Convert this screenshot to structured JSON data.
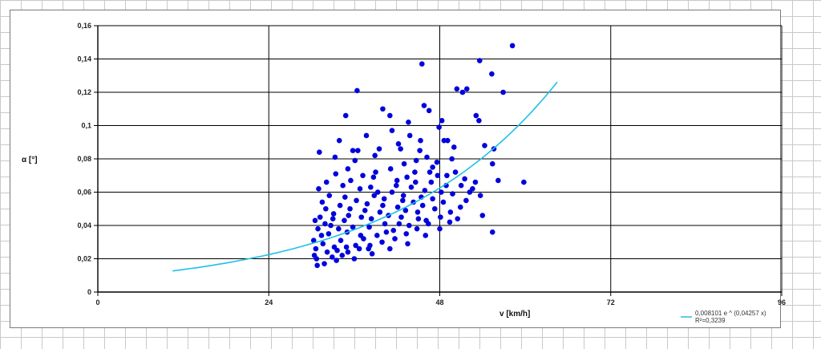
{
  "chart_data": {
    "type": "scatter",
    "title": "",
    "xlabel": "v [km/h]",
    "ylabel": "α [°]",
    "xlim": [
      0,
      96
    ],
    "ylim": [
      0,
      0.16
    ],
    "x_ticks": [
      "0",
      "24",
      "48",
      "72",
      "96"
    ],
    "y_ticks": [
      "0",
      "0,02",
      "0,04",
      "0,06",
      "0,08",
      "0,1",
      "0,12",
      "0,14",
      "0,16"
    ],
    "grid": true,
    "legend_position": "bottom-right",
    "colors": {
      "points": "#0000dd",
      "trend": "#1ec0e8",
      "grid": "#000000"
    },
    "series": [
      {
        "name": "",
        "points": [
          [
            58.2,
            0.148
          ],
          [
            53.6,
            0.139
          ],
          [
            45.5,
            0.137
          ],
          [
            55.3,
            0.131
          ],
          [
            56.9,
            0.12
          ],
          [
            50.4,
            0.122
          ],
          [
            51.2,
            0.12
          ],
          [
            51.8,
            0.122
          ],
          [
            36.4,
            0.121
          ],
          [
            45.8,
            0.112
          ],
          [
            40.0,
            0.11
          ],
          [
            46.5,
            0.109
          ],
          [
            41.0,
            0.106
          ],
          [
            34.8,
            0.106
          ],
          [
            43.6,
            0.102
          ],
          [
            48.3,
            0.103
          ],
          [
            53.1,
            0.106
          ],
          [
            53.5,
            0.103
          ],
          [
            41.3,
            0.097
          ],
          [
            47.9,
            0.099
          ],
          [
            43.8,
            0.094
          ],
          [
            37.7,
            0.094
          ],
          [
            33.9,
            0.091
          ],
          [
            49.1,
            0.091
          ],
          [
            48.6,
            0.091
          ],
          [
            54.3,
            0.088
          ],
          [
            55.6,
            0.086
          ],
          [
            39.5,
            0.086
          ],
          [
            35.8,
            0.085
          ],
          [
            31.1,
            0.084
          ],
          [
            36.5,
            0.085
          ],
          [
            42.5,
            0.086
          ],
          [
            45.2,
            0.085
          ],
          [
            50.0,
            0.087
          ],
          [
            55.4,
            0.077
          ],
          [
            59.8,
            0.066
          ],
          [
            56.2,
            0.067
          ],
          [
            53.0,
            0.066
          ],
          [
            51.0,
            0.064
          ],
          [
            49.8,
            0.059
          ],
          [
            53.7,
            0.058
          ],
          [
            51.7,
            0.055
          ],
          [
            54.0,
            0.046
          ],
          [
            55.4,
            0.036
          ],
          [
            38.7,
            0.069
          ],
          [
            47.0,
            0.075
          ],
          [
            44.5,
            0.072
          ],
          [
            42.0,
            0.067
          ],
          [
            35.5,
            0.067
          ],
          [
            32.5,
            0.058
          ],
          [
            31.0,
            0.062
          ],
          [
            30.5,
            0.043
          ],
          [
            30.3,
            0.031
          ],
          [
            30.4,
            0.022
          ],
          [
            30.8,
            0.016
          ],
          [
            31.8,
            0.017
          ],
          [
            33.5,
            0.019
          ],
          [
            36.0,
            0.02
          ],
          [
            38.5,
            0.023
          ],
          [
            41.0,
            0.026
          ],
          [
            43.5,
            0.029
          ],
          [
            46.0,
            0.034
          ],
          [
            48.0,
            0.038
          ],
          [
            30.9,
            0.038
          ],
          [
            31.6,
            0.029
          ],
          [
            32.4,
            0.035
          ],
          [
            33.2,
            0.027
          ],
          [
            34.1,
            0.031
          ],
          [
            35.0,
            0.036
          ],
          [
            36.2,
            0.028
          ],
          [
            37.3,
            0.032
          ],
          [
            38.1,
            0.039
          ],
          [
            39.2,
            0.034
          ],
          [
            40.3,
            0.041
          ],
          [
            41.5,
            0.037
          ],
          [
            42.6,
            0.045
          ],
          [
            43.7,
            0.04
          ],
          [
            44.9,
            0.048
          ],
          [
            46.1,
            0.043
          ],
          [
            47.3,
            0.05
          ],
          [
            31.2,
            0.045
          ],
          [
            32.0,
            0.05
          ],
          [
            33.0,
            0.044
          ],
          [
            34.0,
            0.052
          ],
          [
            35.2,
            0.046
          ],
          [
            36.3,
            0.055
          ],
          [
            37.5,
            0.049
          ],
          [
            38.8,
            0.058
          ],
          [
            40.0,
            0.052
          ],
          [
            41.3,
            0.06
          ],
          [
            42.8,
            0.055
          ],
          [
            44.0,
            0.063
          ],
          [
            45.4,
            0.057
          ],
          [
            46.8,
            0.066
          ],
          [
            48.2,
            0.06
          ],
          [
            32.2,
            0.024
          ],
          [
            33.6,
            0.025
          ],
          [
            35.1,
            0.024
          ],
          [
            36.7,
            0.026
          ],
          [
            38.2,
            0.028
          ],
          [
            39.9,
            0.03
          ],
          [
            41.7,
            0.032
          ],
          [
            43.3,
            0.035
          ],
          [
            44.8,
            0.038
          ],
          [
            46.4,
            0.041
          ],
          [
            30.6,
            0.026
          ],
          [
            31.4,
            0.034
          ],
          [
            32.7,
            0.04
          ],
          [
            33.8,
            0.038
          ],
          [
            34.6,
            0.043
          ],
          [
            35.8,
            0.039
          ],
          [
            37.0,
            0.045
          ],
          [
            38.4,
            0.044
          ],
          [
            39.6,
            0.048
          ],
          [
            40.8,
            0.046
          ],
          [
            42.1,
            0.051
          ],
          [
            43.2,
            0.049
          ],
          [
            44.3,
            0.054
          ],
          [
            45.6,
            0.052
          ],
          [
            47.0,
            0.056
          ],
          [
            48.5,
            0.054
          ],
          [
            49.5,
            0.048
          ],
          [
            50.5,
            0.044
          ],
          [
            49.0,
            0.07
          ],
          [
            47.6,
            0.078
          ],
          [
            46.2,
            0.081
          ],
          [
            44.7,
            0.079
          ],
          [
            43.0,
            0.077
          ],
          [
            41.1,
            0.074
          ],
          [
            39.0,
            0.072
          ],
          [
            37.2,
            0.07
          ],
          [
            35.1,
            0.074
          ],
          [
            33.4,
            0.071
          ],
          [
            32.1,
            0.066
          ],
          [
            34.4,
            0.064
          ],
          [
            36.8,
            0.062
          ],
          [
            39.3,
            0.06
          ],
          [
            41.9,
            0.064
          ],
          [
            44.6,
            0.066
          ],
          [
            47.7,
            0.07
          ],
          [
            50.2,
            0.072
          ],
          [
            52.2,
            0.06
          ],
          [
            50.9,
            0.051
          ],
          [
            49.4,
            0.042
          ],
          [
            48.1,
            0.045
          ],
          [
            30.7,
            0.02
          ],
          [
            32.9,
            0.021
          ],
          [
            34.3,
            0.022
          ],
          [
            31.9,
            0.041
          ],
          [
            34.9,
            0.027
          ],
          [
            36.9,
            0.034
          ],
          [
            38.0,
            0.026
          ],
          [
            40.5,
            0.036
          ],
          [
            42.3,
            0.041
          ],
          [
            45.0,
            0.044
          ],
          [
            33.1,
            0.047
          ],
          [
            35.4,
            0.05
          ],
          [
            37.8,
            0.053
          ],
          [
            40.2,
            0.056
          ],
          [
            42.9,
            0.058
          ],
          [
            45.9,
            0.061
          ],
          [
            48.9,
            0.064
          ],
          [
            31.5,
            0.054
          ],
          [
            34.7,
            0.057
          ],
          [
            38.3,
            0.063
          ],
          [
            43.4,
            0.069
          ],
          [
            46.6,
            0.072
          ],
          [
            51.5,
            0.068
          ],
          [
            52.6,
            0.062
          ],
          [
            49.7,
            0.08
          ],
          [
            45.3,
            0.091
          ],
          [
            42.2,
            0.089
          ],
          [
            38.9,
            0.082
          ],
          [
            36.1,
            0.079
          ],
          [
            33.3,
            0.081
          ]
        ]
      }
    ],
    "trendline": {
      "name": "0,008101 e ^ (0,04257 x)",
      "r2_label": "R²=0,3239",
      "a": 0.008101,
      "b": 0.04257,
      "x_range": [
        10.5,
        64.5
      ]
    }
  }
}
